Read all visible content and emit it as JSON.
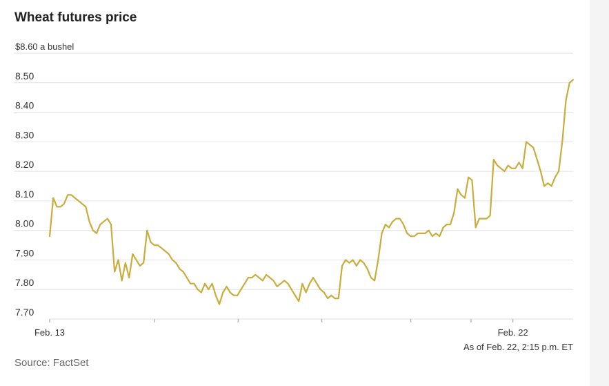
{
  "title": "Wheat futures price",
  "as_of": "As of Feb. 22, 2:15 p.m. ET",
  "source": "Source: FactSet",
  "colors": {
    "line": "#c9ad3c",
    "grid": "#e3e3e3",
    "axis": "#dddddd",
    "text": "#333333"
  },
  "chart_data": {
    "type": "line",
    "title": "Wheat futures price",
    "unit_label": "$8.60 a bushel",
    "ylim": [
      7.7,
      8.6
    ],
    "y_ticks": [
      "$8.60 a bushel",
      "8.50",
      "8.40",
      "8.30",
      "8.20",
      "8.10",
      "8.00",
      "7.90",
      "7.80",
      "7.70"
    ],
    "y_tick_values": [
      8.6,
      8.5,
      8.4,
      8.3,
      8.2,
      8.1,
      8.0,
      7.9,
      7.8,
      7.7
    ],
    "x_labels": [
      "Feb. 13",
      "Feb. 22"
    ],
    "x_tick_positions": [
      0.0,
      0.2,
      0.36,
      0.52,
      0.69,
      0.805,
      0.885
    ],
    "x_label_positions": [
      0.0,
      0.885
    ],
    "grid": true,
    "series": [
      {
        "values": [
          7.98,
          8.11,
          8.08,
          8.08,
          8.09,
          8.12,
          8.12,
          8.11,
          8.1,
          8.09,
          8.08,
          8.03,
          8.0,
          7.99,
          8.02,
          8.03,
          8.04,
          8.02,
          7.86,
          7.9,
          7.83,
          7.89,
          7.84,
          7.92,
          7.9,
          7.88,
          7.89,
          8.0,
          7.96,
          7.95,
          7.95,
          7.94,
          7.93,
          7.92,
          7.9,
          7.89,
          7.87,
          7.86,
          7.84,
          7.82,
          7.82,
          7.8,
          7.79,
          7.82,
          7.8,
          7.82,
          7.78,
          7.75,
          7.79,
          7.81,
          7.79,
          7.78,
          7.78,
          7.8,
          7.82,
          7.84,
          7.84,
          7.85,
          7.84,
          7.83,
          7.85,
          7.84,
          7.83,
          7.81,
          7.82,
          7.83,
          7.82,
          7.8,
          7.78,
          7.76,
          7.82,
          7.79,
          7.82,
          7.84,
          7.82,
          7.8,
          7.79,
          7.77,
          7.78,
          7.77,
          7.77,
          7.88,
          7.9,
          7.89,
          7.9,
          7.88,
          7.9,
          7.89,
          7.87,
          7.84,
          7.83,
          7.9,
          7.99,
          8.02,
          8.01,
          8.03,
          8.04,
          8.04,
          8.02,
          7.99,
          7.98,
          7.98,
          7.99,
          7.99,
          7.99,
          8.0,
          7.98,
          7.99,
          7.98,
          8.01,
          8.02,
          8.02,
          8.06,
          8.14,
          8.12,
          8.11,
          8.18,
          8.17,
          8.01,
          8.04,
          8.04,
          8.04,
          8.05,
          8.24,
          8.22,
          8.21,
          8.2,
          8.22,
          8.21,
          8.21,
          8.23,
          8.21,
          8.3,
          8.29,
          8.28,
          8.24,
          8.2,
          8.15,
          8.16,
          8.15,
          8.18,
          8.2,
          8.3,
          8.44,
          8.5,
          8.51
        ]
      }
    ]
  }
}
